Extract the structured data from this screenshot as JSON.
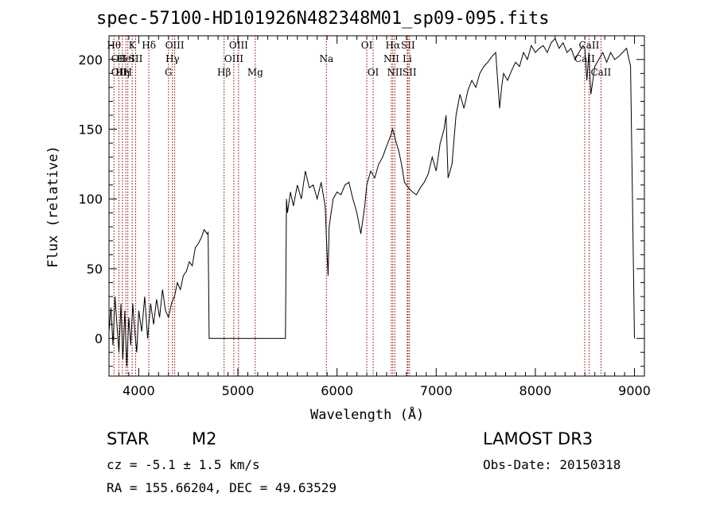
{
  "chart_data": {
    "type": "line",
    "title": "spec-57100-HD101926N482348M01_sp09-095.fits",
    "xlabel": "Wavelength (Å)",
    "ylabel": "Flux (relative)",
    "xlim": [
      3700,
      9100
    ],
    "ylim": [
      -27,
      217
    ],
    "xticks": [
      4000,
      5000,
      6000,
      7000,
      8000,
      9000
    ],
    "yticks": [
      0,
      50,
      100,
      150,
      200
    ],
    "grid": false,
    "series": [
      {
        "x": [
          3700,
          3720,
          3740,
          3760,
          3780,
          3800,
          3820,
          3840,
          3860,
          3880,
          3900,
          3920,
          3940,
          3960,
          3980,
          4000,
          4030,
          4060,
          4090,
          4120,
          4150,
          4180,
          4210,
          4240,
          4270,
          4300,
          4330,
          4360,
          4390,
          4420,
          4450,
          4480,
          4510,
          4540,
          4570,
          4600,
          4630,
          4660,
          4690,
          4700,
          4710,
          5480,
          5490,
          5500,
          5530,
          5560,
          5600,
          5640,
          5680,
          5720,
          5760,
          5800,
          5840,
          5880,
          5900,
          5910,
          5920,
          5960,
          6000,
          6040,
          6080,
          6120,
          6160,
          6200,
          6240,
          6280,
          6300,
          6340,
          6380,
          6420,
          6460,
          6500,
          6540,
          6560,
          6570,
          6590,
          6620,
          6650,
          6680,
          6720,
          6760,
          6800,
          6840,
          6880,
          6920,
          6960,
          7000,
          7040,
          7080,
          7100,
          7120,
          7160,
          7200,
          7240,
          7280,
          7320,
          7360,
          7400,
          7440,
          7480,
          7520,
          7560,
          7600,
          7640,
          7660,
          7680,
          7720,
          7760,
          7800,
          7840,
          7880,
          7920,
          7960,
          8000,
          8040,
          8080,
          8120,
          8160,
          8200,
          8240,
          8280,
          8320,
          8360,
          8400,
          8440,
          8480,
          8500,
          8520,
          8540,
          8560,
          8600,
          8640,
          8680,
          8720,
          8760,
          8800,
          8840,
          8880,
          8920,
          8960,
          8980,
          9000
        ],
        "y": [
          5,
          22,
          -5,
          30,
          10,
          -10,
          25,
          -15,
          20,
          -20,
          15,
          -5,
          25,
          5,
          -10,
          20,
          5,
          30,
          0,
          25,
          10,
          28,
          15,
          35,
          20,
          15,
          25,
          30,
          40,
          35,
          45,
          48,
          55,
          52,
          65,
          68,
          72,
          78,
          75,
          76,
          0,
          0,
          100,
          90,
          105,
          95,
          110,
          100,
          120,
          108,
          110,
          100,
          112,
          95,
          60,
          45,
          80,
          100,
          105,
          103,
          110,
          112,
          100,
          90,
          75,
          95,
          110,
          120,
          115,
          125,
          130,
          138,
          145,
          150,
          148,
          142,
          135,
          125,
          112,
          108,
          105,
          103,
          108,
          112,
          118,
          130,
          120,
          140,
          150,
          160,
          115,
          125,
          160,
          175,
          165,
          178,
          185,
          180,
          190,
          195,
          198,
          202,
          205,
          165,
          180,
          190,
          185,
          192,
          198,
          195,
          205,
          200,
          210,
          205,
          208,
          210,
          205,
          212,
          215,
          208,
          212,
          205,
          208,
          200,
          205,
          210,
          208,
          185,
          205,
          175,
          195,
          200,
          205,
          198,
          205,
          200,
          202,
          205,
          208,
          195,
          100,
          0
        ]
      }
    ],
    "lines": [
      {
        "x": 3750,
        "top": "Hθ",
        "mid": "",
        "bot": ""
      },
      {
        "x": 3800,
        "top": "",
        "mid": "OII",
        "bot": "OII"
      },
      {
        "x": 3835,
        "top": "",
        "mid": "",
        "bot": "Hη"
      },
      {
        "x": 3870,
        "top": "",
        "mid": "HeI",
        "bot": ""
      },
      {
        "x": 3890,
        "top": "",
        "mid": "",
        "bot": "H"
      },
      {
        "x": 3934,
        "top": "K",
        "mid": "",
        "bot": ""
      },
      {
        "x": 3969,
        "top": "",
        "mid": "SII",
        "bot": ""
      },
      {
        "x": 4102,
        "top": "Hδ",
        "mid": "",
        "bot": ""
      },
      {
        "x": 4300,
        "top": "",
        "mid": "",
        "bot": "G"
      },
      {
        "x": 4340,
        "top": "",
        "mid": "Hγ",
        "bot": ""
      },
      {
        "x": 4363,
        "top": "OIII",
        "mid": "",
        "bot": ""
      },
      {
        "x": 4861,
        "top": "",
        "mid": "",
        "bot": "Hβ"
      },
      {
        "x": 4959,
        "top": "",
        "mid": "OIII",
        "bot": ""
      },
      {
        "x": 5007,
        "top": "OIII",
        "mid": "",
        "bot": ""
      },
      {
        "x": 5175,
        "top": "",
        "mid": "",
        "bot": "Mg"
      },
      {
        "x": 5893,
        "top": "",
        "mid": "Na",
        "bot": ""
      },
      {
        "x": 6300,
        "top": "OI",
        "mid": "",
        "bot": ""
      },
      {
        "x": 6364,
        "top": "",
        "mid": "",
        "bot": "OI"
      },
      {
        "x": 6548,
        "top": "",
        "mid": "NII",
        "bot": ""
      },
      {
        "x": 6563,
        "top": "Hα",
        "mid": "",
        "bot": ""
      },
      {
        "x": 6583,
        "top": "",
        "mid": "",
        "bot": "NII"
      },
      {
        "x": 6708,
        "top": "",
        "mid": "Li",
        "bot": ""
      },
      {
        "x": 6716,
        "top": "SII",
        "mid": "",
        "bot": ""
      },
      {
        "x": 6731,
        "top": "",
        "mid": "",
        "bot": "SII"
      },
      {
        "x": 8498,
        "top": "",
        "mid": "CaII",
        "bot": ""
      },
      {
        "x": 8542,
        "top": "CaII",
        "mid": "",
        "bot": ""
      },
      {
        "x": 8662,
        "top": "",
        "mid": "",
        "bot": "CaII"
      }
    ]
  },
  "info": {
    "class": "STAR",
    "subclass": "M2",
    "survey": "LAMOST DR3",
    "cz": "cz = -5.1 ± 1.5 km/s",
    "obs_date": "Obs-Date: 20150318",
    "radec": "RA = 155.66204, DEC =  49.63529"
  },
  "colors": {
    "line": "#000000",
    "marker": "#8b0000"
  }
}
